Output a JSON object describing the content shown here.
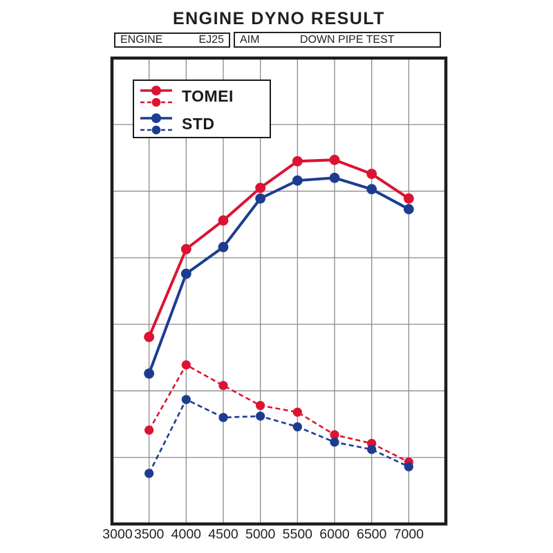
{
  "title": "ENGINE DYNO RESULT",
  "header": {
    "engine_label": "ENGINE",
    "engine_value": "EJ25",
    "aim_label": "AIM",
    "aim_value": "DOWN PIPE TEST"
  },
  "legend": {
    "position": "top-left inside plot",
    "entries": [
      {
        "label": "TOMEI",
        "color": "#dc1332",
        "samples": [
          "solid-line-with-dot",
          "dashed-line-with-dot"
        ]
      },
      {
        "label": "STD",
        "color": "#1c3d8f",
        "samples": [
          "solid-line-with-dot",
          "dashed-line-with-dot"
        ]
      }
    ]
  },
  "colors": {
    "tomei_red": "#dc1332",
    "std_blue": "#1c3d8f",
    "grid_gray": "#8b8b8b",
    "frame_black": "#1c1c1c",
    "text_black": "#232323"
  },
  "chart_data": {
    "type": "line",
    "title": "ENGINE DYNO RESULT",
    "categories_rpm": [
      3500,
      4000,
      4500,
      5000,
      5500,
      6000,
      6500,
      7000
    ],
    "x_tick_labels": [
      "3000",
      "3500",
      "4000",
      "4500",
      "5000",
      "5500",
      "6000",
      "6500",
      "7000"
    ],
    "xlim_rpm": [
      3000,
      7500
    ],
    "ylim_grid_units": [
      0,
      7
    ],
    "y_axis_note": "no numeric y-axis is shown; values estimated in horizontal-gridline units measured up from the chart bottom border",
    "grid": true,
    "series": [
      {
        "name": "TOMEI",
        "style": "solid",
        "color": "#dc1332",
        "values": [
          2.81,
          4.13,
          4.56,
          5.05,
          5.45,
          5.47,
          5.26,
          4.89
        ]
      },
      {
        "name": "STD",
        "style": "solid",
        "color": "#1c3d8f",
        "values": [
          2.26,
          3.76,
          4.16,
          4.89,
          5.16,
          5.2,
          5.03,
          4.73
        ]
      },
      {
        "name": "TOMEI",
        "style": "dashed",
        "color": "#dc1332",
        "values": [
          1.41,
          2.39,
          2.08,
          1.78,
          1.68,
          1.34,
          1.21,
          0.93
        ]
      },
      {
        "name": "STD",
        "style": "dashed",
        "color": "#1c3d8f",
        "values": [
          0.76,
          1.87,
          1.6,
          1.62,
          1.46,
          1.23,
          1.12,
          0.86
        ]
      }
    ]
  }
}
